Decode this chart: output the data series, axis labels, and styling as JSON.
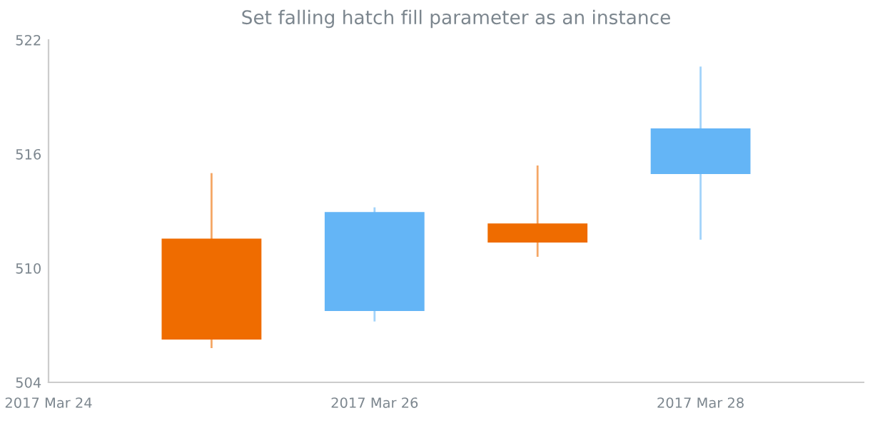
{
  "chart_data": {
    "type": "candlestick",
    "title": "Set falling hatch fill parameter as an instance",
    "x": [
      "2017-03-25",
      "2017-03-26",
      "2017-03-27",
      "2017-03-28"
    ],
    "ohlc": [
      [
        511.5,
        515.0,
        505.8,
        506.3
      ],
      [
        507.8,
        513.2,
        507.2,
        512.9
      ],
      [
        512.3,
        515.4,
        510.6,
        511.4
      ],
      [
        515.0,
        520.6,
        511.5,
        517.3
      ]
    ],
    "colors": [
      "#ef6c00",
      "#64b5f6",
      "#ef6c00",
      "#64b5f6"
    ],
    "xlim": [
      "2017-03-24",
      "2017-03-29"
    ],
    "xticks": [
      {
        "value": "2017-03-24",
        "label": "2017 Mar 24"
      },
      {
        "value": "2017-03-26",
        "label": "2017 Mar 26"
      },
      {
        "value": "2017-03-28",
        "label": "2017 Mar 28"
      }
    ],
    "ylim": [
      504,
      522
    ],
    "yticks": [
      504,
      510,
      516,
      522
    ],
    "grid": false
  }
}
